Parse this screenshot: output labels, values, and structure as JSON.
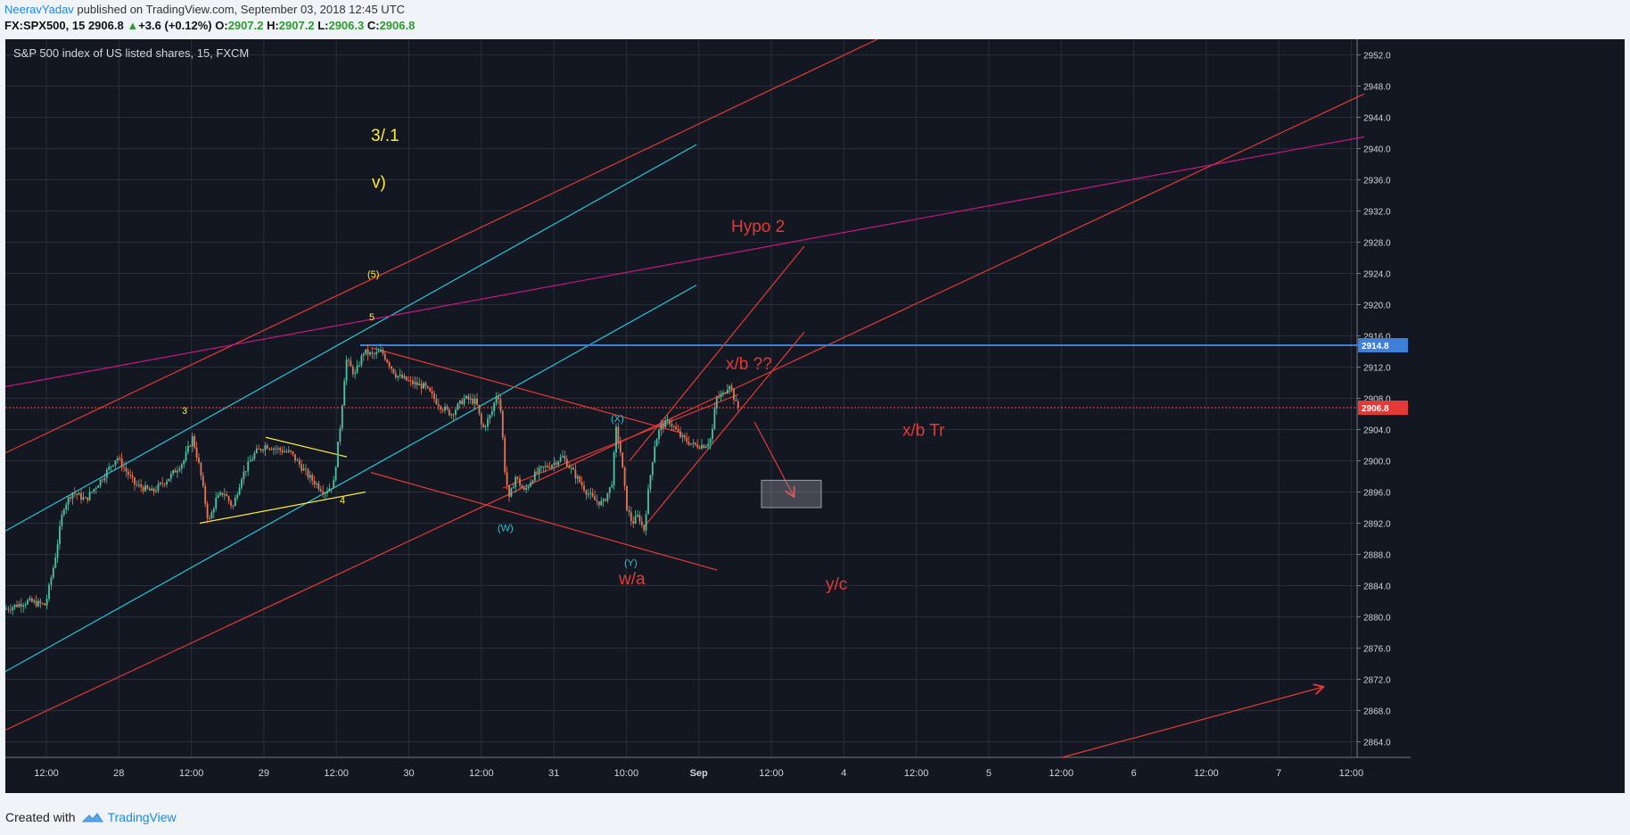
{
  "header": {
    "author": "NeeravYadav",
    "published_text": " published on TradingView.com, September 03, 2018 12:45 UTC",
    "symbol": "FX:SPX500, 15",
    "last": "2906.8",
    "change_arrow": "▲",
    "change": "+3.6 (+0.12%)",
    "o_label": "O:",
    "o_val": "2907.2",
    "h_label": "H:",
    "h_val": "2907.2",
    "l_label": "L:",
    "l_val": "2906.3",
    "c_label": "C:",
    "c_val": "2906.8"
  },
  "footer": {
    "created_with": "Created with",
    "brand": "TradingView",
    "logo_icon": "tradingview-cloud-icon"
  },
  "colors": {
    "background": "#131722",
    "grid": "#2a2e39",
    "candle_up": "#4fc3a1",
    "candle_down": "#e57755",
    "red_line": "#e53935",
    "cyan_line": "#26c6da",
    "magenta_line": "#c71585",
    "yellow": "#ffeb3b",
    "blue_level": "#3d7fd9"
  },
  "chart_data": {
    "type": "candlestick",
    "title": "S&P 500 index of US listed shares, 15, FXCM",
    "y_axis": {
      "position": "right",
      "ylim": [
        2862,
        2954
      ],
      "ticks": [
        "2864.0",
        "2868.0",
        "2872.0",
        "2876.0",
        "2880.0",
        "2884.0",
        "2888.0",
        "2892.0",
        "2896.0",
        "2900.0",
        "2904.0",
        "2908.0",
        "2912.0",
        "2916.0",
        "2920.0",
        "2924.0",
        "2928.0",
        "2932.0",
        "2936.0",
        "2940.0",
        "2944.0",
        "2948.0",
        "2952.0"
      ]
    },
    "x_axis": {
      "ticks": [
        "12:00",
        "28",
        "12:00",
        "29",
        "12:00",
        "30",
        "12:00",
        "31",
        "10:00",
        "Sep",
        "12:00",
        "4",
        "12:00",
        "5",
        "12:00",
        "6",
        "12:00",
        "7",
        "12:00"
      ]
    },
    "price_labels": [
      {
        "value": 2914.8,
        "text": "2914.8",
        "color": "#3d7fd9"
      },
      {
        "value": 2906.8,
        "text": "2906.8",
        "color": "#e53935"
      }
    ],
    "price_path": [
      [
        0,
        2881
      ],
      [
        25,
        2882
      ],
      [
        45,
        2881.5
      ],
      [
        55,
        2887
      ],
      [
        65,
        2894
      ],
      [
        75,
        2896
      ],
      [
        90,
        2895
      ],
      [
        110,
        2898
      ],
      [
        125,
        2900.5
      ],
      [
        145,
        2897
      ],
      [
        165,
        2896
      ],
      [
        185,
        2898
      ],
      [
        200,
        2900
      ],
      [
        210,
        2903
      ],
      [
        218,
        2899
      ],
      [
        228,
        2892
      ],
      [
        236,
        2895
      ],
      [
        245,
        2896
      ],
      [
        255,
        2894
      ],
      [
        265,
        2898
      ],
      [
        280,
        2901
      ],
      [
        292,
        2902
      ],
      [
        305,
        2901.5
      ],
      [
        320,
        2901
      ],
      [
        340,
        2898
      ],
      [
        358,
        2896
      ],
      [
        368,
        2897
      ],
      [
        376,
        2905
      ],
      [
        382,
        2913
      ],
      [
        392,
        2911
      ],
      [
        402,
        2914
      ],
      [
        412,
        2913.5
      ],
      [
        422,
        2914
      ],
      [
        438,
        2911
      ],
      [
        455,
        2910
      ],
      [
        470,
        2909.5
      ],
      [
        488,
        2907
      ],
      [
        500,
        2906
      ],
      [
        515,
        2908
      ],
      [
        528,
        2907.5
      ],
      [
        535,
        2904
      ],
      [
        545,
        2906
      ],
      [
        552,
        2909
      ],
      [
        556,
        2906
      ],
      [
        560,
        2899
      ],
      [
        565,
        2895
      ],
      [
        572,
        2898
      ],
      [
        582,
        2896
      ],
      [
        592,
        2898
      ],
      [
        602,
        2899
      ],
      [
        612,
        2899.5
      ],
      [
        625,
        2900.5
      ],
      [
        640,
        2898
      ],
      [
        652,
        2896
      ],
      [
        660,
        2895
      ],
      [
        670,
        2894.5
      ],
      [
        680,
        2897
      ],
      [
        685,
        2904
      ],
      [
        690,
        2901
      ],
      [
        697,
        2894
      ],
      [
        703,
        2892
      ],
      [
        710,
        2893
      ],
      [
        716,
        2891
      ],
      [
        722,
        2897
      ],
      [
        728,
        2902
      ],
      [
        735,
        2904.5
      ],
      [
        745,
        2905
      ],
      [
        758,
        2903
      ],
      [
        772,
        2902
      ],
      [
        785,
        2902
      ],
      [
        792,
        2903
      ],
      [
        797,
        2908
      ],
      [
        805,
        2908.5
      ],
      [
        812,
        2910
      ],
      [
        820,
        2907
      ],
      [
        822,
        2906.8
      ]
    ],
    "drawings": {
      "lines": [
        {
          "color": "#e53935",
          "y1": 2901.0,
          "x2": 978,
          "y2": 2954.0
        },
        {
          "color": "#e53935",
          "y1": 2865.5,
          "x2": 1524,
          "y2": 2947.0
        },
        {
          "color": "#26c6da",
          "y1": 2891.0,
          "x2": 775,
          "y2": 2940.5
        },
        {
          "color": "#26c6da",
          "y1": 2873.0,
          "x2": 775,
          "y2": 2922.5
        },
        {
          "color": "#c71585",
          "y1": 2909.5,
          "x2": 1524,
          "y2": 2941.5
        },
        {
          "x1": 1185,
          "y1": 2862.0,
          "x2": 1477,
          "y2": 2871.0,
          "color": "#e53935",
          "arrow": true
        },
        {
          "x1": 398,
          "y1": 2914.8,
          "x2": 1524,
          "y2": 2914.8,
          "color": "#3d7fd9",
          "width": 2
        },
        {
          "x1": 0,
          "y1": 2906.8,
          "x2": 1524,
          "y2": 2906.8,
          "color": "#e53935",
          "dash": true
        },
        {
          "x1": 410,
          "y1": 2914.5,
          "x2": 760,
          "y2": 2903.5,
          "color": "#e53935"
        },
        {
          "x1": 410,
          "y1": 2898.5,
          "x2": 798,
          "y2": 2886.0,
          "color": "#e53935"
        },
        {
          "x1": 700,
          "y1": 2900.0,
          "x2": 896,
          "y2": 2927.5,
          "color": "#e53935"
        },
        {
          "x1": 716,
          "y1": 2891.5,
          "x2": 896,
          "y2": 2916.5,
          "color": "#e53935"
        },
        {
          "x1": 558,
          "y1": 2896.5,
          "x2": 822,
          "y2": 2908.5,
          "color": "#e53935"
        },
        {
          "x1": 218,
          "y1": 2892.0,
          "x2": 404,
          "y2": 2896.0,
          "color": "#ffeb3b"
        },
        {
          "x1": 292,
          "y1": 2903.0,
          "x2": 383,
          "y2": 2900.5,
          "color": "#ffeb3b"
        },
        {
          "x1": 840,
          "y1": 2905.0,
          "x2": 884,
          "y2": 2895.5,
          "color": "#e53935",
          "arrow": true
        }
      ],
      "rects": [
        {
          "x1": 848,
          "y1": 2897.5,
          "x2": 915,
          "y2": 2894.0,
          "fill": "rgba(160,160,170,0.35)",
          "stroke": "#9aa0ab"
        }
      ],
      "texts": [
        {
          "text": "3/.1",
          "x": 410,
          "y": 2941.0,
          "color": "#ffeb3b",
          "size": 19
        },
        {
          "text": "v)",
          "x": 411,
          "y": 2935.0,
          "color": "#ffeb3b",
          "size": 19
        },
        {
          "text": "(5)",
          "x": 406,
          "y": 2923.5,
          "color": "#ffeb3b",
          "size": 11
        },
        {
          "text": "5",
          "x": 408,
          "y": 2918.0,
          "color": "#ffeb3b",
          "size": 11
        },
        {
          "text": "3",
          "x": 198,
          "y": 2906.0,
          "color": "#ffeb3b",
          "size": 11
        },
        {
          "text": "4",
          "x": 375,
          "y": 2894.5,
          "color": "#ffeb3b",
          "size": 11
        },
        {
          "text": "Hypo 2",
          "x": 814,
          "y": 2929.3,
          "color": "#e53935",
          "size": 19
        },
        {
          "text": "x/b ??",
          "x": 808,
          "y": 2911.7,
          "color": "#e53935",
          "size": 19
        },
        {
          "text": "x/b Tr",
          "x": 1006,
          "y": 2903.2,
          "color": "#e53935",
          "size": 19
        },
        {
          "text": "w/a",
          "x": 688,
          "y": 2884.2,
          "color": "#e53935",
          "size": 19
        },
        {
          "text": "y/c",
          "x": 920,
          "y": 2883.5,
          "color": "#e53935",
          "size": 19
        },
        {
          "text": "(X)",
          "x": 679,
          "y": 2905.0,
          "color": "#26c6da",
          "size": 11
        },
        {
          "text": "(W)",
          "x": 552,
          "y": 2891.0,
          "color": "#26c6da",
          "size": 11
        },
        {
          "text": "(Y)",
          "x": 694,
          "y": 2886.5,
          "color": "#26c6da",
          "size": 11
        }
      ]
    }
  }
}
